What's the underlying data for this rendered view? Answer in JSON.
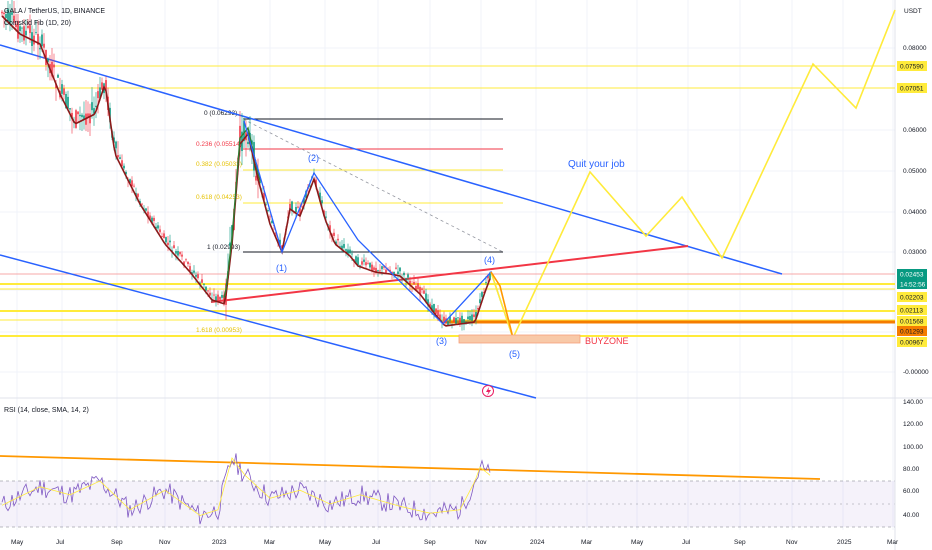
{
  "header": {
    "symbol": "GALA / TetherUS, 1D, BINANCE",
    "indicator": "CoinsKid Fib (1D, 20)",
    "currency": "USDT"
  },
  "rsi_header": "RSI (14, close, SMA, 14, 2)",
  "annotations": {
    "quit": "Quit your job",
    "buyzone": "BUYZONE",
    "wave1": "(1)",
    "wave2": "(2)",
    "wave3": "(3)",
    "wave4": "(4)",
    "wave5": "(5)",
    "lightning_icon": "lightning-icon"
  },
  "colors": {
    "blue_channel": "#2962ff",
    "red_trend": "#f23645",
    "yellow_levels": "#ffeb3b",
    "rsi_trend": "#ff9800",
    "rsi_line": "#7e57c2",
    "wave_path": "#2962ff",
    "projection": "#ffeb3b",
    "buyzone_fill": "#f8c9a8",
    "last_price_bg": "#089981",
    "support_red_bg": "#f57c00"
  },
  "chart_data": [
    {
      "type": "line",
      "title": "GALA / TetherUS, 1D, BINANCE",
      "x_ticks": [
        "May",
        "Jul",
        "Sep",
        "Nov",
        "2023",
        "Mar",
        "May",
        "Jul",
        "Sep",
        "Nov",
        "2024",
        "Mar",
        "May",
        "Jul",
        "Sep",
        "Nov",
        "2025",
        "Mar"
      ],
      "y_ticks": [
        "0.08000",
        "0.06000",
        "0.05000",
        "0.04000",
        "0.03000",
        "-0.00000"
      ],
      "price_labels": [
        {
          "value": "0.07590",
          "style": "yellow"
        },
        {
          "value": "0.07051",
          "style": "yellow"
        },
        {
          "value": "0.02453",
          "style": "last"
        },
        {
          "value": "14:52:56",
          "style": "last"
        },
        {
          "value": "0.02203",
          "style": "yellow"
        },
        {
          "value": "0.02113",
          "style": "yellow"
        },
        {
          "value": "0.01568",
          "style": "yellow"
        },
        {
          "value": "0.01293",
          "style": "orange"
        },
        {
          "value": "0.00967",
          "style": "yellow"
        }
      ],
      "fib_levels": [
        {
          "label": "0 (0.06293)",
          "value": 0.06293
        },
        {
          "label": "0.236 (0.05514)",
          "value": 0.05514
        },
        {
          "label": "0.382 (0.05033)",
          "value": 0.05033
        },
        {
          "label": "0.618 (0.04253)",
          "value": 0.04253
        },
        {
          "label": "1 (0.02993)",
          "value": 0.02993
        },
        {
          "label": "1.618 (0.00953)",
          "value": 0.00953
        }
      ],
      "series": [
        {
          "name": "",
          "x": [
            "2022-05",
            "2022-06",
            "2022-07",
            "2022-08",
            "2022-09",
            "2022-10",
            "2022-11",
            "2022-12",
            "2023-01",
            "2023-02",
            "2023-03",
            "2023-04",
            "2023-05",
            "2023-06",
            "2023-07",
            "2023-08",
            "2023-09",
            "2023-10",
            "2023-11"
          ],
          "y": [
            0.085,
            0.07,
            0.062,
            0.055,
            0.047,
            0.04,
            0.034,
            0.02,
            0.06,
            0.048,
            0.042,
            0.038,
            0.031,
            0.027,
            0.028,
            0.023,
            0.016,
            0.017,
            0.0245
          ]
        }
      ]
    },
    {
      "type": "line",
      "title": "RSI (14, close, SMA, 14, 2)",
      "y_ticks": [
        "140.00",
        "120.00",
        "100.00",
        "80.00",
        "60.00",
        "40.00"
      ],
      "ylim": [
        30,
        140
      ],
      "bands": [
        30,
        70
      ],
      "series": [
        {
          "name": "",
          "x": [
            "2022-05",
            "2022-06",
            "2022-07",
            "2022-08",
            "2022-09",
            "2022-10",
            "2022-11",
            "2022-12",
            "2023-01",
            "2023-02",
            "2023-03",
            "2023-04",
            "2023-05",
            "2023-06",
            "2023-07",
            "2023-08",
            "2023-09",
            "2023-10",
            "2023-11"
          ],
          "y": [
            55,
            40,
            58,
            44,
            62,
            38,
            50,
            35,
            88,
            52,
            45,
            60,
            41,
            57,
            48,
            38,
            42,
            40,
            80
          ]
        }
      ]
    }
  ]
}
